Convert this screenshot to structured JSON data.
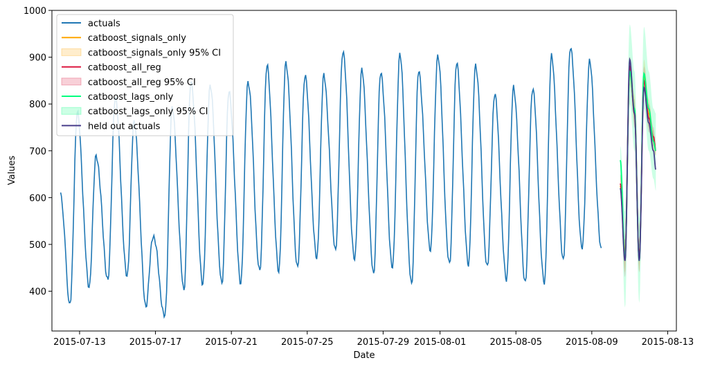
{
  "chart_data": {
    "type": "line",
    "title": "",
    "xlabel": "Date",
    "ylabel": "Values",
    "xlim": [
      "2015-07-11T13:00",
      "2015-08-13T11:00"
    ],
    "ylim": [
      315,
      1000
    ],
    "x_ticks": [
      "2015-07-13",
      "2015-07-17",
      "2015-07-21",
      "2015-07-25",
      "2015-07-29",
      "2015-08-01",
      "2015-08-05",
      "2015-08-09",
      "2015-08-13"
    ],
    "y_ticks": [
      400,
      500,
      600,
      700,
      800,
      900,
      1000
    ],
    "grid": false,
    "legend_position": "top-left",
    "legend": [
      {
        "label": "actuals",
        "kind": "line",
        "color": "#1f77b4"
      },
      {
        "label": "catboost_signals_only",
        "kind": "line",
        "color": "#ffa500"
      },
      {
        "label": "catboost_signals_only 95% CI",
        "kind": "band",
        "color": "#ffa500"
      },
      {
        "label": "catboost_all_reg",
        "kind": "line",
        "color": "#dc143c"
      },
      {
        "label": "catboost_all_reg 95% CI",
        "kind": "band",
        "color": "#dc143c"
      },
      {
        "label": "catboost_lags_only",
        "kind": "line",
        "color": "#00ff7f"
      },
      {
        "label": "catboost_lags_only 95% CI",
        "kind": "band",
        "color": "#00ff7f"
      },
      {
        "label": "held out actuals",
        "kind": "line",
        "color": "#483d8b"
      }
    ],
    "actuals_daily": {
      "start": "2015-07-12",
      "amplitude_note": "daily cycle: peak ~21:00, trough ~12:00",
      "peaks": [
        780,
        690,
        815,
        760,
        520,
        790,
        850,
        840,
        825,
        850,
        880,
        890,
        860,
        860,
        915,
        870,
        870,
        905,
        870,
        905,
        885,
        885,
        820,
        835,
        835,
        900,
        925,
        890
      ],
      "troughs": [
        370,
        410,
        425,
        430,
        370,
        345,
        405,
        415,
        415,
        420,
        440,
        445,
        450,
        470,
        490,
        465,
        440,
        450,
        415,
        490,
        455,
        460,
        450,
        425,
        420,
        415,
        470,
        490
      ]
    },
    "forecast": {
      "x": [
        "2015-08-10T12:00",
        "2015-08-10T18:00",
        "2015-08-11T00:00",
        "2015-08-11T06:00",
        "2015-08-11T12:00",
        "2015-08-11T18:00",
        "2015-08-12T00:00",
        "2015-08-12T06:00",
        "2015-08-12T09:00"
      ],
      "series": [
        {
          "name": "catboost_signals_only",
          "values": [
            625,
            480,
            870,
            790,
            470,
            860,
            780,
            720,
            700
          ],
          "ci_lower": [
            600,
            440,
            840,
            760,
            440,
            830,
            750,
            700,
            690
          ],
          "ci_upper": [
            650,
            510,
            900,
            820,
            500,
            895,
            810,
            745,
            715
          ]
        },
        {
          "name": "catboost_all_reg",
          "values": [
            630,
            470,
            880,
            780,
            470,
            850,
            770,
            730,
            700
          ],
          "ci_lower": [
            610,
            430,
            860,
            750,
            440,
            830,
            740,
            710,
            690
          ],
          "ci_upper": [
            650,
            510,
            900,
            810,
            500,
            880,
            800,
            750,
            715
          ]
        },
        {
          "name": "catboost_lags_only",
          "values": [
            680,
            470,
            870,
            790,
            465,
            865,
            790,
            720,
            700
          ],
          "ci_lower": [
            640,
            365,
            800,
            700,
            375,
            790,
            700,
            640,
            615
          ],
          "ci_upper": [
            710,
            570,
            970,
            870,
            555,
            965,
            870,
            790,
            780
          ]
        },
        {
          "name": "held out actuals",
          "values": [
            620,
            465,
            895,
            780,
            465,
            835,
            760,
            700,
            660
          ]
        }
      ]
    }
  }
}
